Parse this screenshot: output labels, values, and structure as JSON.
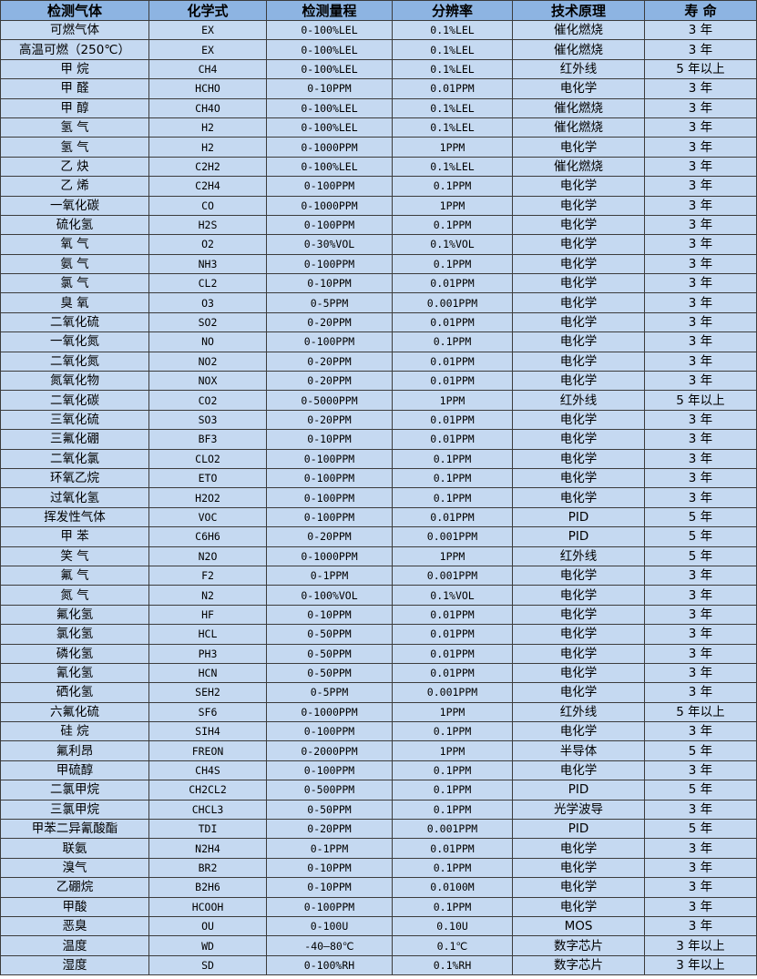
{
  "table": {
    "headers": [
      "检测气体",
      "化学式",
      "检测量程",
      "分辨率",
      "技术原理",
      "寿 命"
    ],
    "rows": [
      [
        "可燃气体",
        "EX",
        "0-100%LEL",
        "0.1%LEL",
        "催化燃烧",
        "3 年"
      ],
      [
        "高温可燃（250℃）",
        "EX",
        "0-100%LEL",
        "0.1%LEL",
        "催化燃烧",
        "3 年"
      ],
      [
        "甲 烷",
        "CH4",
        "0-100%LEL",
        "0.1%LEL",
        "红外线",
        "5 年以上"
      ],
      [
        "甲 醛",
        "HCHO",
        "0-10PPM",
        "0.01PPM",
        "电化学",
        "3 年"
      ],
      [
        "甲 醇",
        "CH4O",
        "0-100%LEL",
        "0.1%LEL",
        "催化燃烧",
        "3 年"
      ],
      [
        "氢 气",
        "H2",
        "0-100%LEL",
        "0.1%LEL",
        "催化燃烧",
        "3 年"
      ],
      [
        "氢 气",
        "H2",
        "0-1000PPM",
        "1PPM",
        "电化学",
        "3 年"
      ],
      [
        "乙 炔",
        "C2H2",
        "0-100%LEL",
        "0.1%LEL",
        "催化燃烧",
        "3 年"
      ],
      [
        "乙 烯",
        "C2H4",
        "0-100PPM",
        "0.1PPM",
        "电化学",
        "3 年"
      ],
      [
        "一氧化碳",
        "CO",
        "0-1000PPM",
        "1PPM",
        "电化学",
        "3 年"
      ],
      [
        "硫化氢",
        "H2S",
        "0-100PPM",
        "0.1PPM",
        "电化学",
        "3 年"
      ],
      [
        "氧 气",
        "O2",
        "0-30%VOL",
        "0.1%VOL",
        "电化学",
        "3 年"
      ],
      [
        "氨 气",
        "NH3",
        "0-100PPM",
        "0.1PPM",
        "电化学",
        "3 年"
      ],
      [
        "氯 气",
        "CL2",
        "0-10PPM",
        "0.01PPM",
        "电化学",
        "3 年"
      ],
      [
        "臭 氧",
        "O3",
        "0-5PPM",
        "0.001PPM",
        "电化学",
        "3 年"
      ],
      [
        "二氧化硫",
        "SO2",
        "0-20PPM",
        "0.01PPM",
        "电化学",
        "3 年"
      ],
      [
        "一氧化氮",
        "NO",
        "0-100PPM",
        "0.1PPM",
        "电化学",
        "3 年"
      ],
      [
        "二氧化氮",
        "NO2",
        "0-20PPM",
        "0.01PPM",
        "电化学",
        "3 年"
      ],
      [
        "氮氧化物",
        "NOX",
        "0-20PPM",
        "0.01PPM",
        "电化学",
        "3 年"
      ],
      [
        "二氧化碳",
        "CO2",
        "0-5000PPM",
        "1PPM",
        "红外线",
        "5 年以上"
      ],
      [
        "三氧化硫",
        "SO3",
        "0-20PPM",
        "0.01PPM",
        "电化学",
        "3 年"
      ],
      [
        "三氟化硼",
        "BF3",
        "0-10PPM",
        "0.01PPM",
        "电化学",
        "3 年"
      ],
      [
        "二氧化氯",
        "CLO2",
        "0-100PPM",
        "0.1PPM",
        "电化学",
        "3 年"
      ],
      [
        "环氧乙烷",
        "ETO",
        "0-100PPM",
        "0.1PPM",
        "电化学",
        "3 年"
      ],
      [
        "过氧化氢",
        "H2O2",
        "0-100PPM",
        "0.1PPM",
        "电化学",
        "3 年"
      ],
      [
        "挥发性气体",
        "VOC",
        "0-100PPM",
        "0.01PPM",
        "PID",
        "5 年"
      ],
      [
        "甲 苯",
        "C6H6",
        "0-20PPM",
        "0.001PPM",
        "PID",
        "5 年"
      ],
      [
        "笑 气",
        "N2O",
        "0-1000PPM",
        "1PPM",
        "红外线",
        "5 年"
      ],
      [
        "氟 气",
        "F2",
        "0-1PPM",
        "0.001PPM",
        "电化学",
        "3 年"
      ],
      [
        "氮 气",
        "N2",
        "0-100%VOL",
        "0.1%VOL",
        "电化学",
        "3 年"
      ],
      [
        "氟化氢",
        "HF",
        "0-10PPM",
        "0.01PPM",
        "电化学",
        "3 年"
      ],
      [
        "氯化氢",
        "HCL",
        "0-50PPM",
        "0.01PPM",
        "电化学",
        "3 年"
      ],
      [
        "磷化氢",
        "PH3",
        "0-50PPM",
        "0.01PPM",
        "电化学",
        "3 年"
      ],
      [
        "氰化氢",
        "HCN",
        "0-50PPM",
        "0.01PPM",
        "电化学",
        "3 年"
      ],
      [
        "硒化氢",
        "SEH2",
        "0-5PPM",
        "0.001PPM",
        "电化学",
        "3 年"
      ],
      [
        "六氟化硫",
        "SF6",
        "0-1000PPM",
        "1PPM",
        "红外线",
        "5 年以上"
      ],
      [
        "硅 烷",
        "SIH4",
        "0-100PPM",
        "0.1PPM",
        "电化学",
        "3 年"
      ],
      [
        "氟利昂",
        "FREON",
        "0-2000PPM",
        "1PPM",
        "半导体",
        "5 年"
      ],
      [
        "甲硫醇",
        "CH4S",
        "0-100PPM",
        "0.1PPM",
        "电化学",
        "3 年"
      ],
      [
        "二氯甲烷",
        "CH2CL2",
        "0-500PPM",
        "0.1PPM",
        "PID",
        "5 年"
      ],
      [
        "三氯甲烷",
        "CHCL3",
        "0-50PPM",
        "0.1PPM",
        "光学波导",
        "3 年"
      ],
      [
        "甲苯二异氰酸酯",
        "TDI",
        "0-20PPM",
        "0.001PPM",
        "PID",
        "5 年"
      ],
      [
        "联氨",
        "N2H4",
        "0-1PPM",
        "0.01PPM",
        "电化学",
        "3 年"
      ],
      [
        "溴气",
        "BR2",
        "0-10PPM",
        "0.1PPM",
        "电化学",
        "3 年"
      ],
      [
        "乙硼烷",
        "B2H6",
        "0-10PPM",
        "0.0100M",
        "电化学",
        "3 年"
      ],
      [
        "甲酸",
        "HCOOH",
        "0-100PPM",
        "0.1PPM",
        "电化学",
        "3 年"
      ],
      [
        "恶臭",
        "OU",
        "0-100U",
        "0.10U",
        "MOS",
        "3 年"
      ],
      [
        "温度",
        "WD",
        "-40—80℃",
        "0.1℃",
        "数字芯片",
        "3 年以上"
      ],
      [
        "湿度",
        "SD",
        "0-100%RH",
        "0.1%RH",
        "数字芯片",
        "3 年以上"
      ]
    ]
  },
  "colors": {
    "header_bg": "#8db4e2",
    "cell_bg": "#c5d9f1",
    "border": "#3c3c3c"
  }
}
